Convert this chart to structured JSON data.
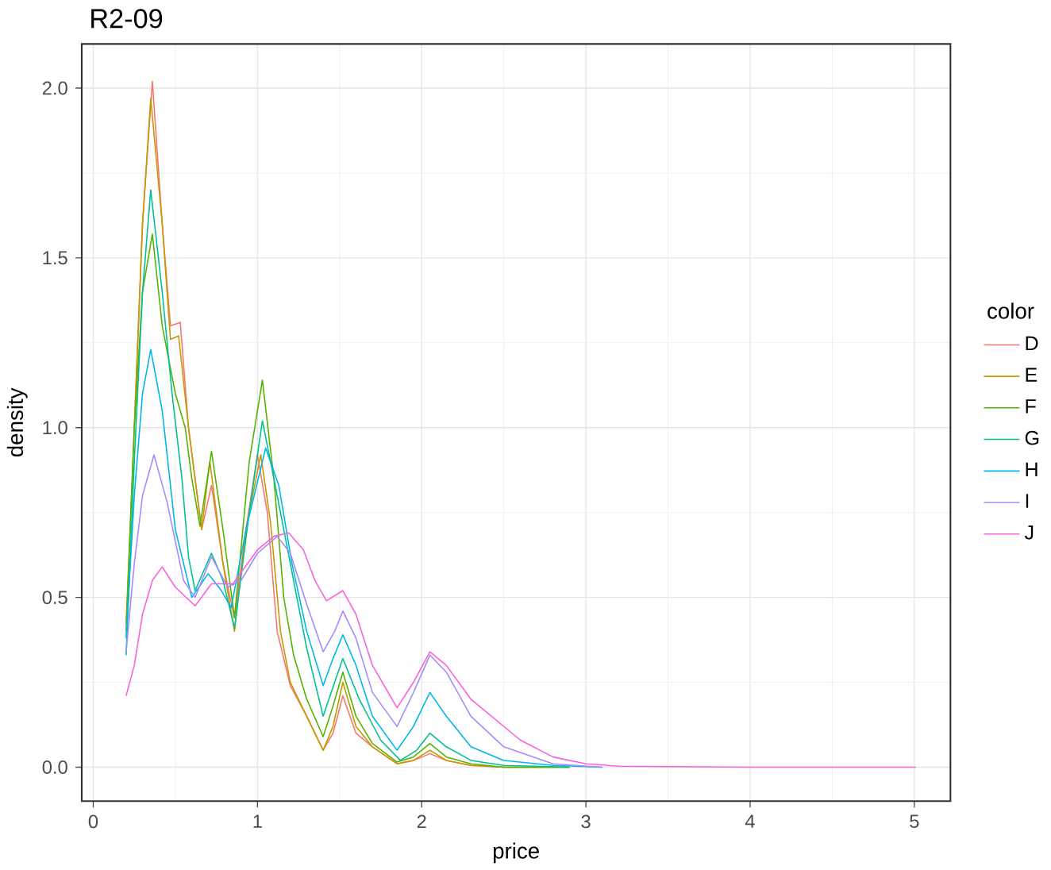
{
  "chart_data": {
    "type": "line",
    "title": "R2-09",
    "xlabel": "price",
    "ylabel": "density",
    "legend_title": "color",
    "legend": "right",
    "grid": true,
    "xlim": [
      -0.07,
      5.22
    ],
    "ylim": [
      -0.1,
      2.13
    ],
    "xticks": [
      0,
      1,
      2,
      3,
      4,
      5
    ],
    "yticks": [
      {
        "value": 0,
        "label": "0.0"
      },
      {
        "value": 0.5,
        "label": "0.5"
      },
      {
        "value": 1,
        "label": "1.0"
      },
      {
        "value": 1.5,
        "label": "1.5"
      },
      {
        "value": 2,
        "label": "2.0"
      }
    ],
    "series": [
      {
        "name": "D",
        "color": "#f8766d",
        "x": [
          0.25,
          0.3,
          0.36,
          0.42,
          0.47,
          0.53,
          0.58,
          0.66,
          0.72,
          0.79,
          0.86,
          0.93,
          1.0,
          1.06,
          1.12,
          1.2,
          1.3,
          1.4,
          1.46,
          1.52,
          1.6,
          1.7,
          1.85,
          1.95,
          2.05,
          2.15,
          2.3,
          2.5,
          2.9
        ],
        "values": [
          1.0,
          1.6,
          2.02,
          1.6,
          1.3,
          1.31,
          1.0,
          0.7,
          0.83,
          0.6,
          0.44,
          0.7,
          0.92,
          0.75,
          0.4,
          0.24,
          0.15,
          0.05,
          0.1,
          0.21,
          0.1,
          0.06,
          0.01,
          0.02,
          0.04,
          0.02,
          0.005,
          0,
          0
        ]
      },
      {
        "name": "E",
        "color": "#c49a00",
        "x": [
          0.2,
          0.25,
          0.3,
          0.35,
          0.42,
          0.47,
          0.52,
          0.58,
          0.66,
          0.71,
          0.79,
          0.86,
          0.93,
          1.02,
          1.08,
          1.14,
          1.2,
          1.3,
          1.4,
          1.46,
          1.52,
          1.6,
          1.7,
          1.85,
          1.95,
          2.05,
          2.15,
          2.3,
          2.5,
          2.9
        ],
        "values": [
          0.42,
          1.0,
          1.6,
          1.97,
          1.6,
          1.26,
          1.27,
          1.0,
          0.7,
          0.9,
          0.6,
          0.4,
          0.7,
          0.92,
          0.72,
          0.4,
          0.25,
          0.15,
          0.05,
          0.12,
          0.25,
          0.12,
          0.06,
          0.01,
          0.02,
          0.05,
          0.02,
          0.005,
          0,
          0
        ]
      },
      {
        "name": "F",
        "color": "#53b400",
        "x": [
          0.2,
          0.25,
          0.3,
          0.36,
          0.42,
          0.5,
          0.56,
          0.6,
          0.65,
          0.72,
          0.79,
          0.86,
          0.95,
          1.03,
          1.1,
          1.16,
          1.22,
          1.3,
          1.4,
          1.46,
          1.52,
          1.6,
          1.7,
          1.85,
          1.95,
          2.05,
          2.15,
          2.3,
          2.5,
          2.9
        ],
        "values": [
          0.4,
          1.0,
          1.4,
          1.57,
          1.3,
          1.1,
          1.0,
          0.85,
          0.71,
          0.93,
          0.7,
          0.44,
          0.9,
          1.14,
          0.85,
          0.5,
          0.33,
          0.2,
          0.09,
          0.18,
          0.28,
          0.15,
          0.07,
          0.015,
          0.03,
          0.07,
          0.03,
          0.01,
          0,
          0
        ]
      },
      {
        "name": "G",
        "color": "#00c094",
        "x": [
          0.2,
          0.25,
          0.3,
          0.35,
          0.42,
          0.48,
          0.54,
          0.58,
          0.62,
          0.72,
          0.79,
          0.86,
          0.95,
          1.03,
          1.1,
          1.2,
          1.3,
          1.4,
          1.47,
          1.52,
          1.62,
          1.75,
          1.87,
          1.97,
          2.05,
          2.15,
          2.3,
          2.5,
          2.9
        ],
        "values": [
          0.33,
          0.9,
          1.4,
          1.7,
          1.4,
          1.1,
          0.85,
          0.62,
          0.52,
          0.63,
          0.55,
          0.41,
          0.75,
          1.02,
          0.85,
          0.6,
          0.35,
          0.15,
          0.25,
          0.32,
          0.2,
          0.08,
          0.02,
          0.05,
          0.1,
          0.06,
          0.02,
          0.005,
          0
        ]
      },
      {
        "name": "H",
        "color": "#00b6eb",
        "x": [
          0.2,
          0.25,
          0.3,
          0.35,
          0.42,
          0.5,
          0.6,
          0.7,
          0.78,
          0.84,
          0.93,
          1.05,
          1.13,
          1.21,
          1.3,
          1.4,
          1.46,
          1.52,
          1.6,
          1.7,
          1.85,
          1.95,
          2.05,
          2.15,
          2.3,
          2.5,
          2.8,
          3.1
        ],
        "values": [
          0.38,
          0.8,
          1.1,
          1.23,
          1.05,
          0.7,
          0.5,
          0.57,
          0.52,
          0.47,
          0.7,
          0.94,
          0.83,
          0.6,
          0.4,
          0.24,
          0.32,
          0.39,
          0.3,
          0.15,
          0.05,
          0.12,
          0.22,
          0.15,
          0.06,
          0.02,
          0.005,
          0
        ]
      },
      {
        "name": "I",
        "color": "#a58aff",
        "x": [
          0.2,
          0.25,
          0.3,
          0.37,
          0.45,
          0.55,
          0.62,
          0.72,
          0.82,
          0.9,
          1.0,
          1.12,
          1.2,
          1.3,
          1.4,
          1.47,
          1.52,
          1.6,
          1.7,
          1.85,
          1.95,
          2.05,
          2.15,
          2.3,
          2.5,
          2.8,
          3.1
        ],
        "values": [
          0.34,
          0.6,
          0.8,
          0.92,
          0.78,
          0.55,
          0.5,
          0.62,
          0.53,
          0.55,
          0.63,
          0.68,
          0.63,
          0.48,
          0.34,
          0.4,
          0.46,
          0.38,
          0.22,
          0.12,
          0.22,
          0.33,
          0.28,
          0.15,
          0.06,
          0.01,
          0
        ]
      },
      {
        "name": "J",
        "color": "#fb61d7",
        "x": [
          0.2,
          0.25,
          0.3,
          0.36,
          0.42,
          0.5,
          0.62,
          0.72,
          0.85,
          1.0,
          1.1,
          1.19,
          1.28,
          1.35,
          1.42,
          1.52,
          1.6,
          1.7,
          1.85,
          1.95,
          2.05,
          2.15,
          2.3,
          2.6,
          2.8,
          3.0,
          3.2,
          4.0,
          5.01
        ],
        "values": [
          0.21,
          0.3,
          0.45,
          0.55,
          0.59,
          0.53,
          0.475,
          0.54,
          0.54,
          0.64,
          0.68,
          0.69,
          0.64,
          0.55,
          0.49,
          0.52,
          0.45,
          0.3,
          0.175,
          0.25,
          0.34,
          0.3,
          0.2,
          0.08,
          0.03,
          0.01,
          0.003,
          0,
          0
        ]
      }
    ]
  }
}
